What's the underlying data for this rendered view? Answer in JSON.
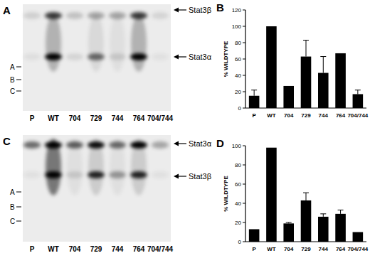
{
  "gels": [
    {
      "panel": "A",
      "arrow_labels": [
        "Stat3β",
        "Stat3α"
      ],
      "side_labels": [
        "A",
        "B",
        "C"
      ],
      "lanes": [
        "P",
        "WT",
        "704",
        "729",
        "744",
        "764",
        "704/744"
      ]
    },
    {
      "panel": "C",
      "arrow_labels": [
        "Stat3α",
        "Stat3β"
      ],
      "side_labels": [
        "A",
        "B",
        "C"
      ],
      "lanes": [
        "P",
        "WT",
        "704",
        "729",
        "744",
        "764",
        "704/744"
      ]
    }
  ],
  "chart_data": [
    {
      "type": "bar",
      "title": "B",
      "ylabel": "% WILDTYPE",
      "categories": [
        "P",
        "WT",
        "704",
        "729",
        "744",
        "764",
        "704/744"
      ],
      "values": [
        15,
        100,
        27,
        63,
        43,
        67,
        17
      ],
      "errors": [
        7,
        null,
        null,
        20,
        20,
        null,
        5
      ],
      "color": "#000000",
      "ylim": [
        0,
        120
      ],
      "yticks": [
        0,
        20,
        40,
        60,
        80,
        100,
        120
      ]
    },
    {
      "type": "bar",
      "title": "D",
      "ylabel": "% WILDTYPE",
      "categories": [
        "P",
        "WT",
        "704",
        "729",
        "744",
        "764",
        "704/744"
      ],
      "values": [
        13,
        98,
        19,
        43,
        26,
        29,
        10
      ],
      "errors": [
        null,
        null,
        1,
        8,
        3,
        4,
        null
      ],
      "color": "#000000",
      "ylim": [
        0,
        100
      ],
      "yticks": [
        0,
        20,
        40,
        60,
        80,
        100
      ]
    }
  ]
}
